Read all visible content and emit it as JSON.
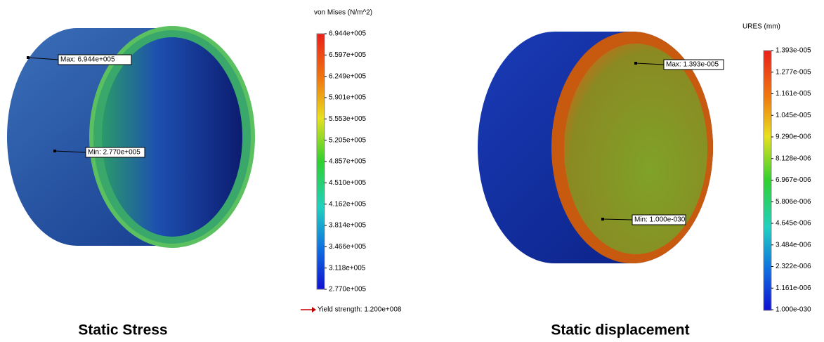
{
  "panels": [
    {
      "legend_title": "von Mises (N/m^2)",
      "scale_labels": [
        "6.944e+005",
        "6.597e+005",
        "6.249e+005",
        "5.901e+005",
        "5.553e+005",
        "5.205e+005",
        "4.857e+005",
        "4.510e+005",
        "4.162e+005",
        "3.814e+005",
        "3.466e+005",
        "3.118e+005",
        "2.770e+005"
      ],
      "max_label": "Max: 6.944e+005",
      "min_label": "Min: 2.770e+005",
      "yield_note": "Yield strength: 1.200e+008",
      "caption": "Static Stress"
    },
    {
      "legend_title": "URES (mm)",
      "scale_labels": [
        "1.393e-005",
        "1.277e-005",
        "1.161e-005",
        "1.045e-005",
        "9.290e-006",
        "8.128e-006",
        "6.967e-006",
        "5.806e-006",
        "4.645e-006",
        "3.484e-006",
        "2.322e-006",
        "1.161e-006",
        "1.000e-030"
      ],
      "max_label": "Max: 1.393e-005",
      "min_label": "Min: 1.000e-030",
      "caption": "Static displacement"
    }
  ]
}
